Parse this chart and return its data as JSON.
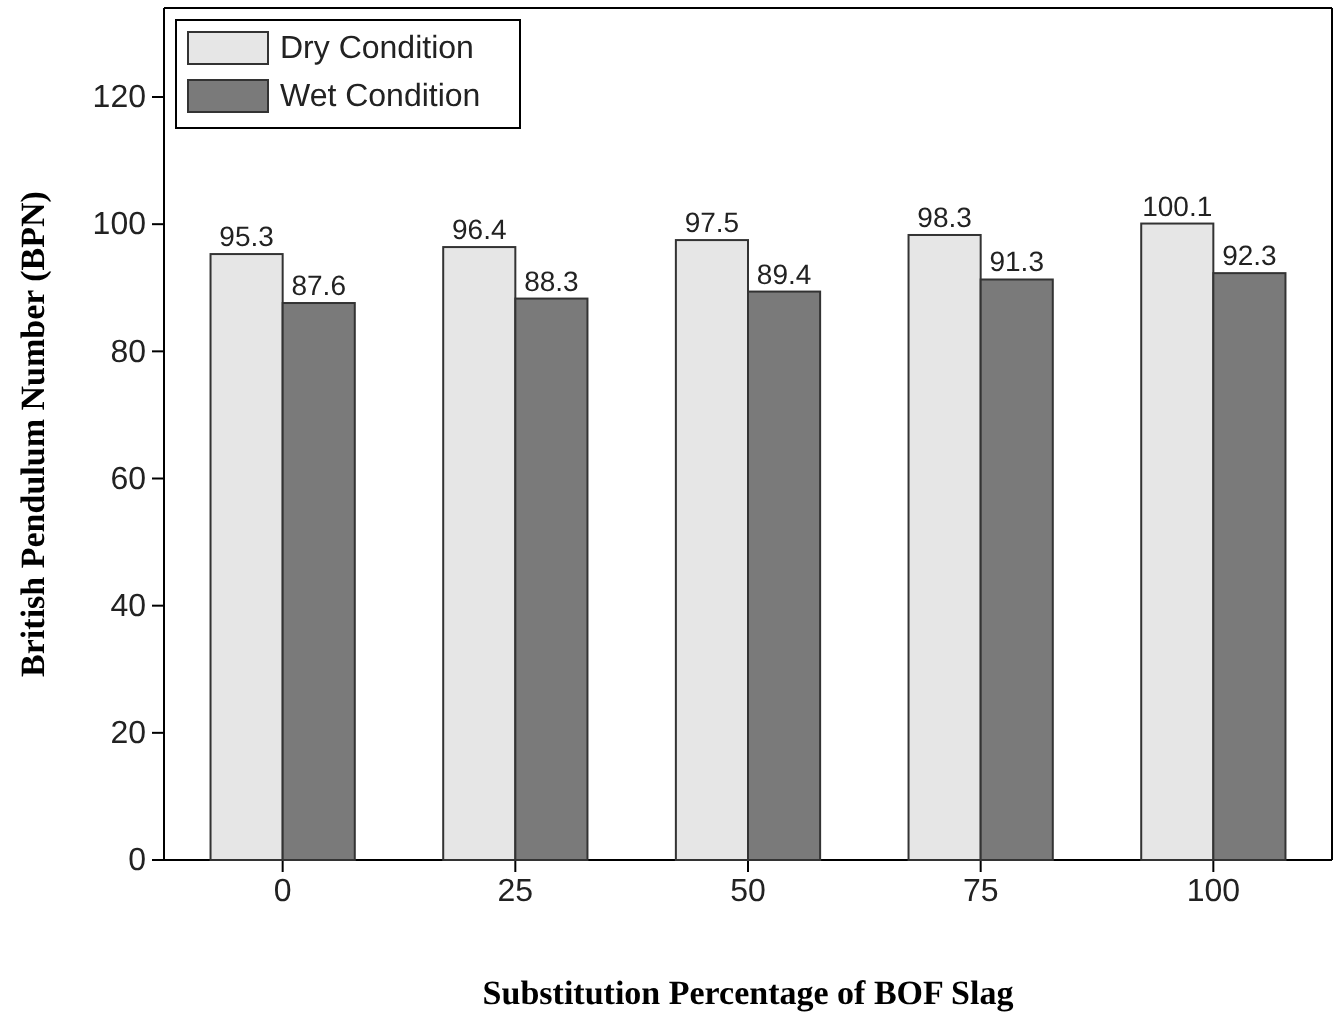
{
  "chart_data": {
    "type": "bar",
    "xlabel": "Substitution Percentage of BOF Slag",
    "ylabel": "British Pendulum Number (BPN)",
    "categories": [
      "0",
      "25",
      "50",
      "75",
      "100"
    ],
    "series": [
      {
        "name": "Dry Condition",
        "color": "#e6e6e6",
        "values": [
          95.3,
          96.4,
          97.5,
          98.3,
          100.1
        ]
      },
      {
        "name": "Wet Condition",
        "color": "#7a7a7a",
        "values": [
          87.6,
          88.3,
          89.4,
          91.3,
          92.3
        ]
      }
    ],
    "ylim": [
      0,
      134
    ],
    "yticks": [
      0,
      20,
      40,
      60,
      80,
      100,
      120
    ],
    "data_labels": true,
    "legend": "top left",
    "grid": false
  }
}
